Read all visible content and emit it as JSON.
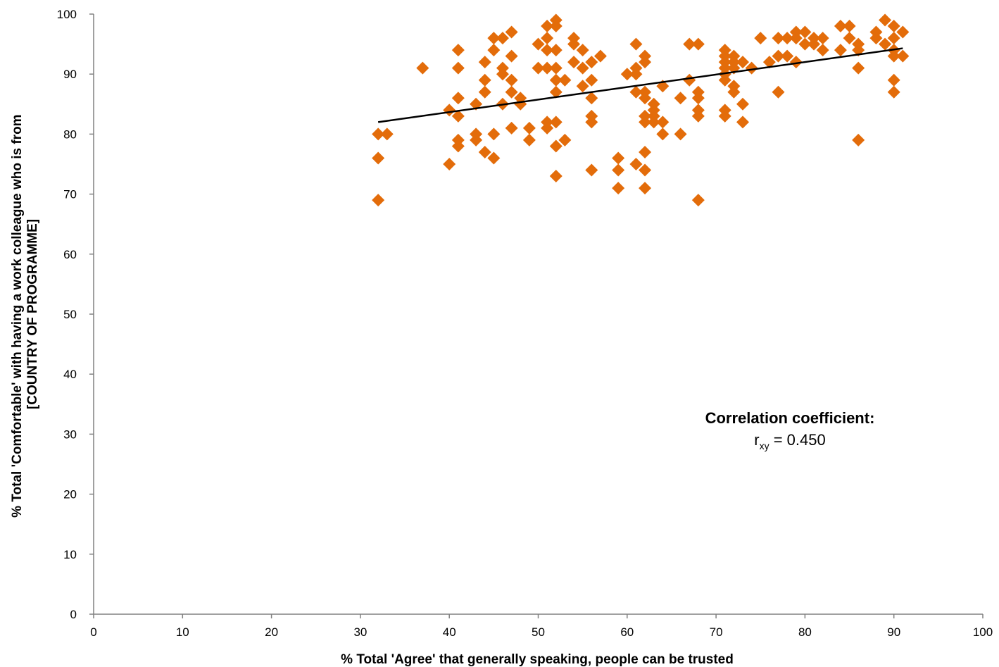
{
  "chart_data": {
    "type": "scatter",
    "title": "",
    "xlabel": "% Total 'Agree' that generally speaking, people can be trusted",
    "ylabel_line1": "% Total 'Comfortable' with having a work colleague who is from",
    "ylabel_line2": "[COUNTRY OF PROGRAMME]",
    "xlim": [
      0,
      100
    ],
    "ylim": [
      0,
      100
    ],
    "x_ticks": [
      0,
      10,
      20,
      30,
      40,
      50,
      60,
      70,
      80,
      90,
      100
    ],
    "y_ticks": [
      0,
      10,
      20,
      30,
      40,
      50,
      60,
      70,
      80,
      90,
      100
    ],
    "grid": false,
    "legend": "none",
    "marker": "diamond",
    "marker_color": "#E36C0A",
    "trendline": {
      "x": [
        32,
        91
      ],
      "y": [
        82,
        94.3
      ],
      "color": "#000000"
    },
    "annotation": {
      "title": "Correlation coefficient:",
      "symbol": "r",
      "subscript": "xy",
      "value_text": " = 0.450"
    },
    "points": [
      [
        32,
        80
      ],
      [
        32,
        76
      ],
      [
        32,
        69
      ],
      [
        33,
        80
      ],
      [
        37,
        91
      ],
      [
        40,
        84
      ],
      [
        40,
        75
      ],
      [
        41,
        94
      ],
      [
        41,
        91
      ],
      [
        41,
        86
      ],
      [
        41,
        83
      ],
      [
        41,
        79
      ],
      [
        41,
        78
      ],
      [
        43,
        85
      ],
      [
        43,
        80
      ],
      [
        43,
        79
      ],
      [
        44,
        92
      ],
      [
        44,
        89
      ],
      [
        44,
        87
      ],
      [
        44,
        77
      ],
      [
        45,
        96
      ],
      [
        45,
        94
      ],
      [
        45,
        80
      ],
      [
        45,
        76
      ],
      [
        46,
        96
      ],
      [
        46,
        91
      ],
      [
        46,
        90
      ],
      [
        46,
        85
      ],
      [
        47,
        97
      ],
      [
        47,
        93
      ],
      [
        47,
        89
      ],
      [
        47,
        87
      ],
      [
        47,
        81
      ],
      [
        48,
        86
      ],
      [
        48,
        85
      ],
      [
        49,
        81
      ],
      [
        49,
        79
      ],
      [
        50,
        95
      ],
      [
        50,
        91
      ],
      [
        51,
        98
      ],
      [
        51,
        96
      ],
      [
        51,
        94
      ],
      [
        51,
        91
      ],
      [
        51,
        82
      ],
      [
        51,
        81
      ],
      [
        52,
        99
      ],
      [
        52,
        98
      ],
      [
        52,
        94
      ],
      [
        52,
        91
      ],
      [
        52,
        89
      ],
      [
        52,
        87
      ],
      [
        52,
        82
      ],
      [
        52,
        78
      ],
      [
        52,
        73
      ],
      [
        53,
        89
      ],
      [
        53,
        79
      ],
      [
        54,
        96
      ],
      [
        54,
        95
      ],
      [
        54,
        92
      ],
      [
        55,
        94
      ],
      [
        55,
        91
      ],
      [
        55,
        88
      ],
      [
        56,
        92
      ],
      [
        56,
        89
      ],
      [
        56,
        86
      ],
      [
        56,
        83
      ],
      [
        56,
        82
      ],
      [
        56,
        74
      ],
      [
        57,
        93
      ],
      [
        59,
        76
      ],
      [
        59,
        74
      ],
      [
        59,
        71
      ],
      [
        60,
        90
      ],
      [
        61,
        95
      ],
      [
        61,
        91
      ],
      [
        61,
        90
      ],
      [
        61,
        87
      ],
      [
        61,
        75
      ],
      [
        62,
        93
      ],
      [
        62,
        92
      ],
      [
        62,
        87
      ],
      [
        62,
        86
      ],
      [
        62,
        83
      ],
      [
        62,
        82
      ],
      [
        62,
        77
      ],
      [
        62,
        74
      ],
      [
        62,
        71
      ],
      [
        63,
        85
      ],
      [
        63,
        84
      ],
      [
        63,
        83
      ],
      [
        63,
        82
      ],
      [
        64,
        88
      ],
      [
        64,
        82
      ],
      [
        64,
        80
      ],
      [
        66,
        86
      ],
      [
        66,
        80
      ],
      [
        67,
        95
      ],
      [
        67,
        89
      ],
      [
        68,
        95
      ],
      [
        68,
        87
      ],
      [
        68,
        86
      ],
      [
        68,
        84
      ],
      [
        68,
        83
      ],
      [
        68,
        69
      ],
      [
        71,
        94
      ],
      [
        71,
        93
      ],
      [
        71,
        92
      ],
      [
        71,
        91
      ],
      [
        71,
        90
      ],
      [
        71,
        89
      ],
      [
        71,
        84
      ],
      [
        71,
        83
      ],
      [
        72,
        93
      ],
      [
        72,
        92
      ],
      [
        72,
        91
      ],
      [
        72,
        88
      ],
      [
        72,
        87
      ],
      [
        73,
        92
      ],
      [
        73,
        85
      ],
      [
        73,
        82
      ],
      [
        74,
        91
      ],
      [
        75,
        96
      ],
      [
        76,
        92
      ],
      [
        77,
        96
      ],
      [
        77,
        93
      ],
      [
        77,
        87
      ],
      [
        78,
        96
      ],
      [
        78,
        93
      ],
      [
        79,
        97
      ],
      [
        79,
        96
      ],
      [
        79,
        92
      ],
      [
        80,
        97
      ],
      [
        80,
        95
      ],
      [
        81,
        96
      ],
      [
        81,
        95
      ],
      [
        82,
        96
      ],
      [
        82,
        94
      ],
      [
        84,
        98
      ],
      [
        84,
        94
      ],
      [
        85,
        98
      ],
      [
        85,
        96
      ],
      [
        86,
        95
      ],
      [
        86,
        94
      ],
      [
        86,
        91
      ],
      [
        86,
        79
      ],
      [
        88,
        97
      ],
      [
        88,
        96
      ],
      [
        89,
        99
      ],
      [
        89,
        95
      ],
      [
        90,
        98
      ],
      [
        90,
        96
      ],
      [
        90,
        94
      ],
      [
        90,
        93
      ],
      [
        90,
        89
      ],
      [
        90,
        87
      ],
      [
        91,
        97
      ],
      [
        91,
        93
      ]
    ]
  }
}
